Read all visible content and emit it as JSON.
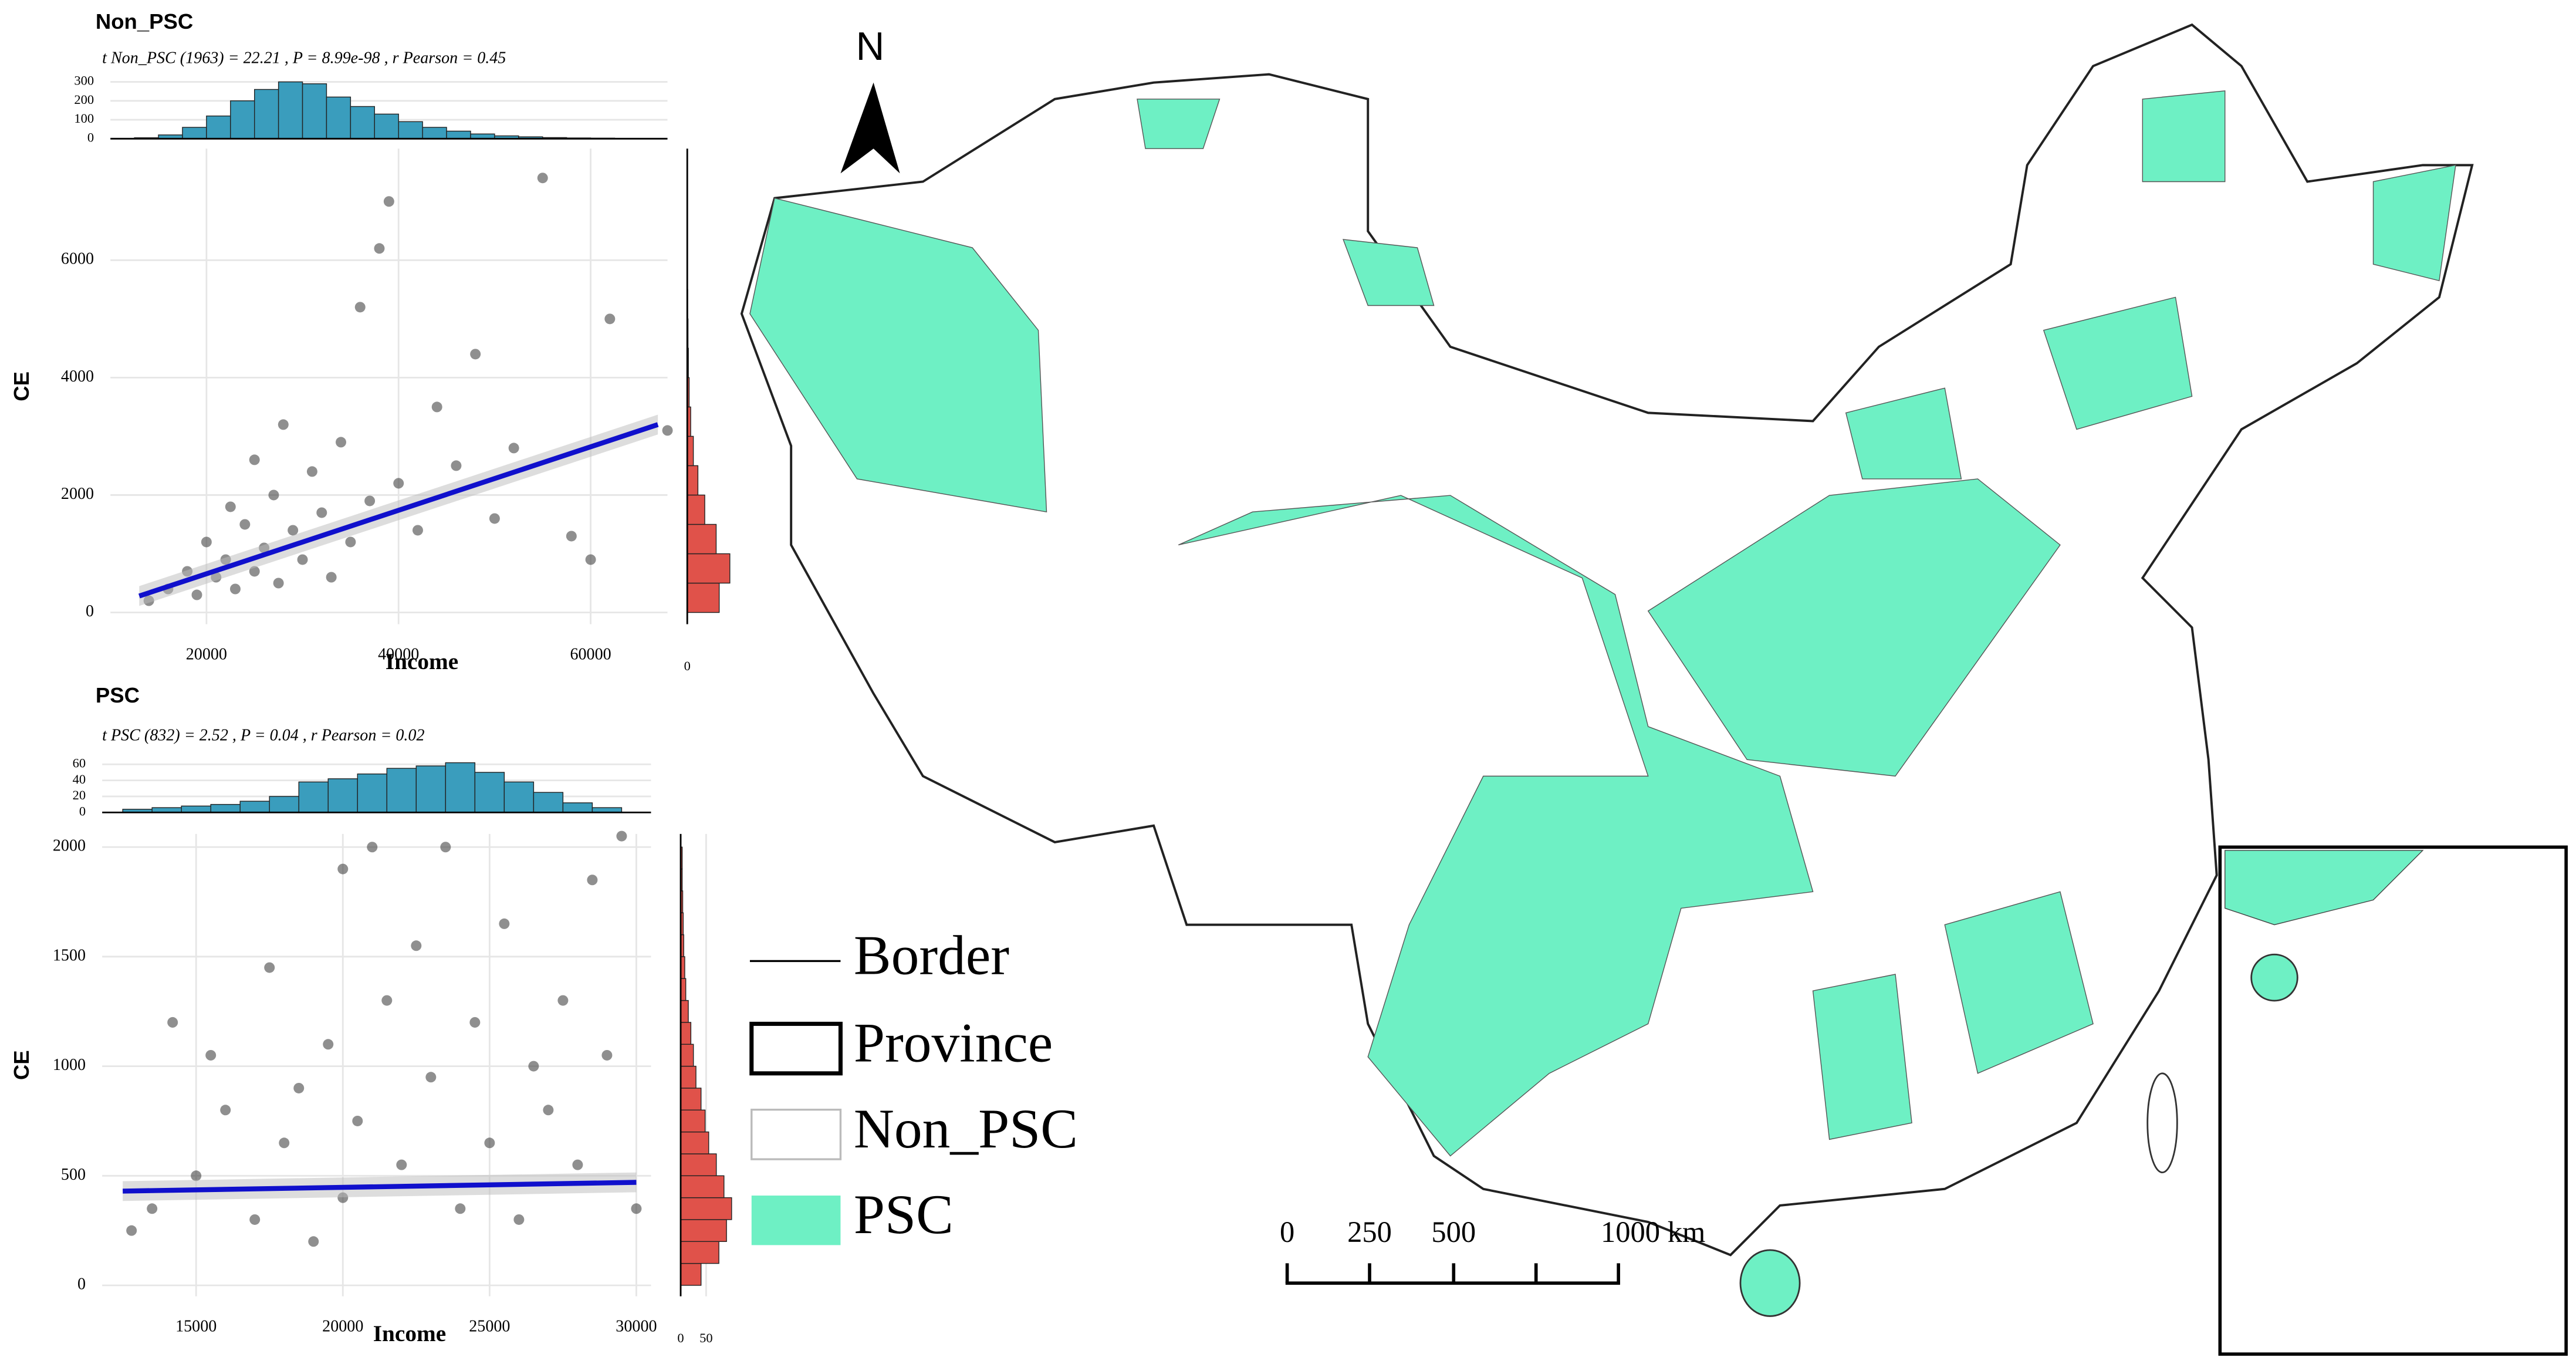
{
  "chart_data": [
    {
      "type": "scatter",
      "title": "Non_PSC",
      "subtitle": "t Non_PSC (1963) = 22.21 , P = 8.99e-98 , r Pearson = 0.45",
      "x_label": "Income",
      "y_label": "CE",
      "x": [
        14000,
        16000,
        18000,
        19000,
        20000,
        21000,
        22000,
        22500,
        23000,
        24000,
        25000,
        25000,
        26000,
        27000,
        27500,
        28000,
        29000,
        30000,
        31000,
        32000,
        33000,
        34000,
        35000,
        36000,
        37000,
        38000,
        39000,
        40000,
        42000,
        44000,
        46000,
        48000,
        50000,
        52000,
        55000,
        58000,
        60000,
        62000,
        68000
      ],
      "y": [
        200,
        400,
        700,
        300,
        1200,
        600,
        900,
        1800,
        400,
        1500,
        700,
        2600,
        1100,
        2000,
        500,
        3200,
        1400,
        900,
        2400,
        1700,
        600,
        2900,
        1200,
        5200,
        1900,
        6200,
        7000,
        2200,
        1400,
        3500,
        2500,
        4400,
        1600,
        2800,
        7400,
        1300,
        900,
        5000,
        3100
      ],
      "xlim": [
        10000,
        68000
      ],
      "xticks": [
        20000,
        40000,
        60000
      ],
      "ylim": [
        -200,
        7900
      ],
      "yticks": [
        0,
        2000,
        4000,
        6000
      ],
      "point_color": "#333333",
      "grid": true,
      "fit": {
        "x": [
          13000,
          67000
        ],
        "y": [
          280,
          3200
        ],
        "color": "#1010cc"
      },
      "top_hist": {
        "bins": [
          12500,
          15000,
          17500,
          20000,
          22500,
          25000,
          27500,
          30000,
          32500,
          35000,
          37500,
          40000,
          42500,
          45000,
          47500,
          50000,
          52500,
          55000,
          57500,
          60000,
          62500,
          65000,
          67500
        ],
        "counts": [
          5,
          20,
          60,
          120,
          200,
          260,
          300,
          290,
          220,
          170,
          130,
          90,
          60,
          40,
          25,
          15,
          10,
          6,
          4,
          3,
          2,
          1
        ],
        "ylim": [
          0,
          340
        ],
        "yticks": [
          0,
          100,
          200,
          300
        ],
        "color": "#3a9dbd"
      },
      "right_hist": {
        "bins": [
          0,
          500,
          1000,
          1500,
          2000,
          2500,
          3000,
          3500,
          4000,
          4500,
          5000,
          5500,
          6000,
          6500,
          7000,
          7500
        ],
        "counts": [
          420,
          560,
          380,
          230,
          140,
          80,
          45,
          25,
          15,
          10,
          6,
          4,
          3,
          2,
          1
        ],
        "xlim": [
          0,
          650
        ],
        "xticks": [
          0
        ],
        "color": "#e0524a"
      }
    },
    {
      "type": "scatter",
      "title": "PSC",
      "subtitle": "t PSC (832) = 2.52 , P = 0.04 , r Pearson = 0.02",
      "x_label": "Income",
      "y_label": "CE",
      "x": [
        12800,
        13500,
        14200,
        15000,
        15500,
        16000,
        17000,
        17500,
        18000,
        18500,
        19000,
        19500,
        20000,
        20000,
        20500,
        21000,
        21500,
        22000,
        22500,
        23000,
        23500,
        24000,
        24500,
        25000,
        25500,
        26000,
        26500,
        27000,
        27500,
        28000,
        28500,
        29000,
        29500,
        30000
      ],
      "y": [
        250,
        350,
        1200,
        500,
        1050,
        800,
        300,
        1450,
        650,
        900,
        200,
        1100,
        400,
        1900,
        750,
        2000,
        1300,
        550,
        1550,
        950,
        2000,
        350,
        1200,
        650,
        1650,
        300,
        1000,
        800,
        1300,
        550,
        1850,
        1050,
        2050,
        350
      ],
      "xlim": [
        11800,
        30500
      ],
      "xticks": [
        15000,
        20000,
        25000,
        30000
      ],
      "ylim": [
        -50,
        2060
      ],
      "yticks": [
        0,
        500,
        1000,
        1500,
        2000
      ],
      "point_color": "#333333",
      "grid": true,
      "fit": {
        "x": [
          12500,
          30000
        ],
        "y": [
          430,
          470
        ],
        "color": "#1010cc"
      },
      "top_hist": {
        "bins": [
          12500,
          13500,
          14500,
          15500,
          16500,
          17500,
          18500,
          19500,
          20500,
          21500,
          22500,
          23500,
          24500,
          25500,
          26500,
          27500,
          28500,
          29500
        ],
        "counts": [
          4,
          6,
          8,
          10,
          14,
          20,
          38,
          42,
          48,
          55,
          58,
          62,
          50,
          38,
          25,
          12,
          6
        ],
        "ylim": [
          0,
          70
        ],
        "yticks": [
          0,
          20,
          40,
          60
        ],
        "color": "#3a9dbd"
      },
      "right_hist": {
        "bins": [
          0,
          100,
          200,
          300,
          400,
          500,
          600,
          700,
          800,
          900,
          1000,
          1100,
          1200,
          1300,
          1400,
          1500,
          1600,
          1700,
          1800,
          1900,
          2000
        ],
        "counts": [
          40,
          75,
          90,
          100,
          85,
          70,
          55,
          48,
          40,
          30,
          25,
          20,
          15,
          10,
          8,
          6,
          5,
          4,
          3,
          3
        ],
        "xlim": [
          0,
          110
        ],
        "xticks": [
          0,
          50
        ],
        "color": "#e0524a"
      }
    }
  ],
  "map": {
    "north": "N",
    "legend": [
      "Border",
      "Province",
      "Non_PSC",
      "PSC"
    ],
    "scale_labels": [
      "0",
      "250",
      "500",
      "1000 km"
    ]
  }
}
